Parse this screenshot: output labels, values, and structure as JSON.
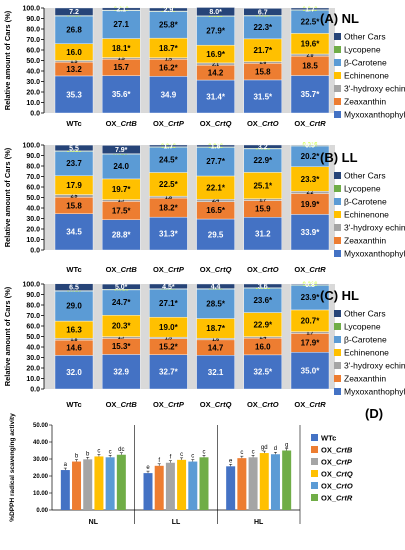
{
  "chart_data": [
    {
      "type": "bar",
      "stacked": true,
      "panel_label": "(A) NL",
      "ylabel": "Relative amount of Cars (%)",
      "ylim": [
        0,
        100
      ],
      "yticks": [
        "0.0",
        "10.0",
        "20.0",
        "30.0",
        "40.0",
        "50.0",
        "60.0",
        "70.0",
        "80.0",
        "90.0",
        "100.0"
      ],
      "categories": [
        "WTc",
        "OX_CrtB",
        "OX_CrtP",
        "OX_CrtQ",
        "OX_CrtO",
        "OX_CrtR"
      ],
      "series": [
        {
          "name": "Myxoxanthophyll",
          "color": "#4472c4",
          "values": [
            35.3,
            35.6,
            34.9,
            31.4,
            31.5,
            35.7
          ],
          "labels": [
            "35.3",
            "35.6*",
            "34.9",
            "31.4*",
            "31.5*",
            "35.7*"
          ]
        },
        {
          "name": "Zeaxanthin",
          "color": "#ed7d31",
          "values": [
            13.2,
            15.7,
            16.2,
            14.2,
            15.8,
            18.5
          ],
          "labels": [
            "13.2",
            "15.7",
            "16.2*",
            "14.2",
            "15.8",
            "18.5"
          ]
        },
        {
          "name": "3'-hydroxy echinenone",
          "color": "#a5a5a5",
          "values": [
            1.5,
            1.5,
            1.5,
            2.1,
            1.6,
            2.0
          ],
          "labels": [
            "1.5",
            "1.5",
            "1.5",
            "2.1",
            "1.6",
            "2.0"
          ]
        },
        {
          "name": "Echinenone",
          "color": "#ffc000",
          "values": [
            16.0,
            18.1,
            18.7,
            16.9,
            21.7,
            19.6
          ],
          "labels": [
            "16.0",
            "18.1*",
            "18.7*",
            "16.9*",
            "21.7*",
            "19.6*"
          ]
        },
        {
          "name": "β-Carotene",
          "color": "#5b9bd5",
          "values": [
            26.8,
            27.1,
            25.8,
            27.9,
            22.3,
            22.5
          ],
          "labels": [
            "26.8",
            "27.1",
            "25.8*",
            "27.9*",
            "22.3*",
            "22.5*"
          ]
        },
        {
          "name": "Lycopene",
          "color": "#70ad47",
          "values": [
            0.019,
            0.019,
            0.019,
            0.019,
            0.019,
            0.019
          ],
          "labels": [
            "0.019",
            "0.019",
            "0.019",
            "0.019",
            "0.019",
            "0.019"
          ]
        },
        {
          "name": "Other Cars",
          "color": "#264478",
          "values": [
            7.2,
            2.1,
            2.9,
            8.0,
            6.7,
            1.7
          ],
          "labels": [
            "7.2",
            "2.1",
            "2.9",
            "8.0*",
            "6.7",
            "1.7"
          ]
        }
      ]
    },
    {
      "type": "bar",
      "stacked": true,
      "panel_label": "(B) LL",
      "ylabel": "Relative amount of Cars (%)",
      "ylim": [
        0,
        100
      ],
      "yticks": [
        "0.0",
        "10.0",
        "20.0",
        "30.0",
        "40.0",
        "50.0",
        "60.0",
        "70.0",
        "80.0",
        "90.0",
        "100.0"
      ],
      "categories": [
        "WTc",
        "OX_CrtB",
        "OX_CrtP",
        "OX_CrtQ",
        "OX_CrtO",
        "OX_CrtR"
      ],
      "series": [
        {
          "name": "Myxoxanthophyll",
          "color": "#4472c4",
          "values": [
            34.5,
            28.8,
            31.3,
            29.5,
            31.2,
            33.9
          ],
          "labels": [
            "34.5",
            "28.8*",
            "31.3*",
            "29.5",
            "31.2",
            "33.9*"
          ]
        },
        {
          "name": "Zeaxanthin",
          "color": "#ed7d31",
          "values": [
            15.8,
            17.5,
            18.2,
            16.5,
            15.9,
            19.9
          ],
          "labels": [
            "15.8",
            "17.5*",
            "18.2*",
            "16.5*",
            "15.9",
            "19.9*"
          ]
        },
        {
          "name": "3'-hydroxy echinenone",
          "color": "#a5a5a5",
          "values": [
            2.5,
            1.7,
            1.8,
            2.4,
            1.7,
            2.2
          ],
          "labels": [
            "2.5",
            "1.7",
            "1.8",
            "2.4",
            "1.7",
            "2.2"
          ]
        },
        {
          "name": "Echinenone",
          "color": "#ffc000",
          "values": [
            17.9,
            19.7,
            22.5,
            22.1,
            25.1,
            23.3
          ],
          "labels": [
            "17.9",
            "19.7*",
            "22.5*",
            "22.1*",
            "25.1*",
            "23.3*"
          ]
        },
        {
          "name": "β-Carotene",
          "color": "#5b9bd5",
          "values": [
            23.7,
            24.0,
            24.5,
            27.7,
            22.9,
            20.2
          ],
          "labels": [
            "23.7",
            "24.0",
            "24.5*",
            "27.7*",
            "22.9*",
            "20.2*"
          ]
        },
        {
          "name": "Lycopene",
          "color": "#70ad47",
          "values": [
            0.016,
            0.026,
            0.016,
            0.016,
            0.016,
            0.016
          ],
          "labels": [
            "0.016",
            "0.026*",
            "0.016",
            "0.016",
            "0.016",
            "0.016"
          ]
        },
        {
          "name": "Other Cars",
          "color": "#264478",
          "values": [
            5.5,
            7.9,
            1.7,
            1.8,
            3.2,
            0.5
          ],
          "labels": [
            "5.5",
            "7.9*",
            "1.7",
            "1.8",
            "3.2",
            "0.5"
          ]
        }
      ]
    },
    {
      "type": "bar",
      "stacked": true,
      "panel_label": "(C) HL",
      "ylabel": "Relative amount of Cars (%)",
      "ylim": [
        0,
        100
      ],
      "yticks": [
        "0.0",
        "10.0",
        "20.0",
        "30.0",
        "40.0",
        "50.0",
        "60.0",
        "70.0",
        "80.0",
        "90.0",
        "100.0"
      ],
      "categories": [
        "WTc",
        "OX_CrtB",
        "OX_CrtP",
        "OX_CrtQ",
        "OX_CrtO",
        "OX_CrtR"
      ],
      "series": [
        {
          "name": "Myxoxanthophyll",
          "color": "#4472c4",
          "values": [
            32.0,
            32.9,
            32.7,
            32.1,
            32.5,
            35.0
          ],
          "labels": [
            "32.0",
            "32.9",
            "32.7*",
            "32.1",
            "32.5*",
            "35.0*"
          ]
        },
        {
          "name": "Zeaxanthin",
          "color": "#ed7d31",
          "values": [
            14.6,
            15.3,
            15.2,
            14.7,
            16.0,
            17.9
          ],
          "labels": [
            "14.6",
            "15.3*",
            "15.2*",
            "14.7",
            "16.0",
            "17.9*"
          ]
        },
        {
          "name": "3'-hydroxy echinenone",
          "color": "#a5a5a5",
          "values": [
            1.8,
            1.7,
            1.5,
            1.6,
            1.4,
            1.7
          ],
          "labels": [
            "1.8",
            "1.7",
            "1.5",
            "1.6",
            "1.4",
            "1.7"
          ]
        },
        {
          "name": "Echinenone",
          "color": "#ffc000",
          "values": [
            16.3,
            20.3,
            19.0,
            18.7,
            22.9,
            20.7
          ],
          "labels": [
            "16.3",
            "20.3*",
            "19.0*",
            "18.7*",
            "22.9*",
            "20.7*"
          ]
        },
        {
          "name": "β-Carotene",
          "color": "#5b9bd5",
          "values": [
            29.0,
            24.7,
            27.1,
            28.5,
            23.6,
            23.9
          ],
          "labels": [
            "29.0",
            "24.7*",
            "27.1*",
            "28.5*",
            "23.6*",
            "23.9*"
          ]
        },
        {
          "name": "Lycopene",
          "color": "#70ad47",
          "values": [
            0.016,
            0.016,
            0.016,
            0.016,
            0.016,
            0.016
          ],
          "labels": [
            "0.016",
            "0.016",
            "0.016",
            "0.016",
            "0.016",
            "0.016"
          ]
        },
        {
          "name": "Other Cars",
          "color": "#264478",
          "values": [
            6.5,
            5.0,
            4.5,
            4.4,
            3.6,
            0.8
          ],
          "labels": [
            "6.5",
            "5.0*",
            "4.5*",
            "4.4",
            "3.6",
            "0.8"
          ]
        }
      ]
    },
    {
      "type": "bar",
      "panel_label": "(D)",
      "ylabel": "%DPPH radical scavenging activity",
      "ylim": [
        0,
        50
      ],
      "yticks": [
        "0.00",
        "10.00",
        "20.00",
        "30.00",
        "40.00",
        "50.00"
      ],
      "categories": [
        "NL",
        "LL",
        "HL"
      ],
      "series": [
        {
          "name": "WTc",
          "color": "#4472c4",
          "values": [
            23.5,
            21.7,
            25.7
          ],
          "letters": [
            "a",
            "e",
            "e"
          ]
        },
        {
          "name": "OX_CrtB",
          "color": "#ed7d31",
          "values": [
            28.5,
            26.0,
            30.5
          ],
          "letters": [
            "b",
            "f",
            "c"
          ]
        },
        {
          "name": "OX_CrtP",
          "color": "#a5a5a5",
          "values": [
            29.8,
            27.8,
            31.0
          ],
          "letters": [
            "b",
            "f",
            "c"
          ]
        },
        {
          "name": "OX_CrtQ",
          "color": "#ffc000",
          "values": [
            31.5,
            29.5,
            33.5
          ],
          "letters": [
            "c",
            "c",
            "gd"
          ]
        },
        {
          "name": "OX_CrtO",
          "color": "#5b9bd5",
          "values": [
            31.0,
            28.5,
            32.8
          ],
          "letters": [
            "c",
            "c",
            "d"
          ]
        },
        {
          "name": "OX_CrtR",
          "color": "#70ad47",
          "values": [
            32.5,
            31.0,
            35.0
          ],
          "letters": [
            "dc",
            "c",
            "g"
          ]
        }
      ]
    }
  ]
}
